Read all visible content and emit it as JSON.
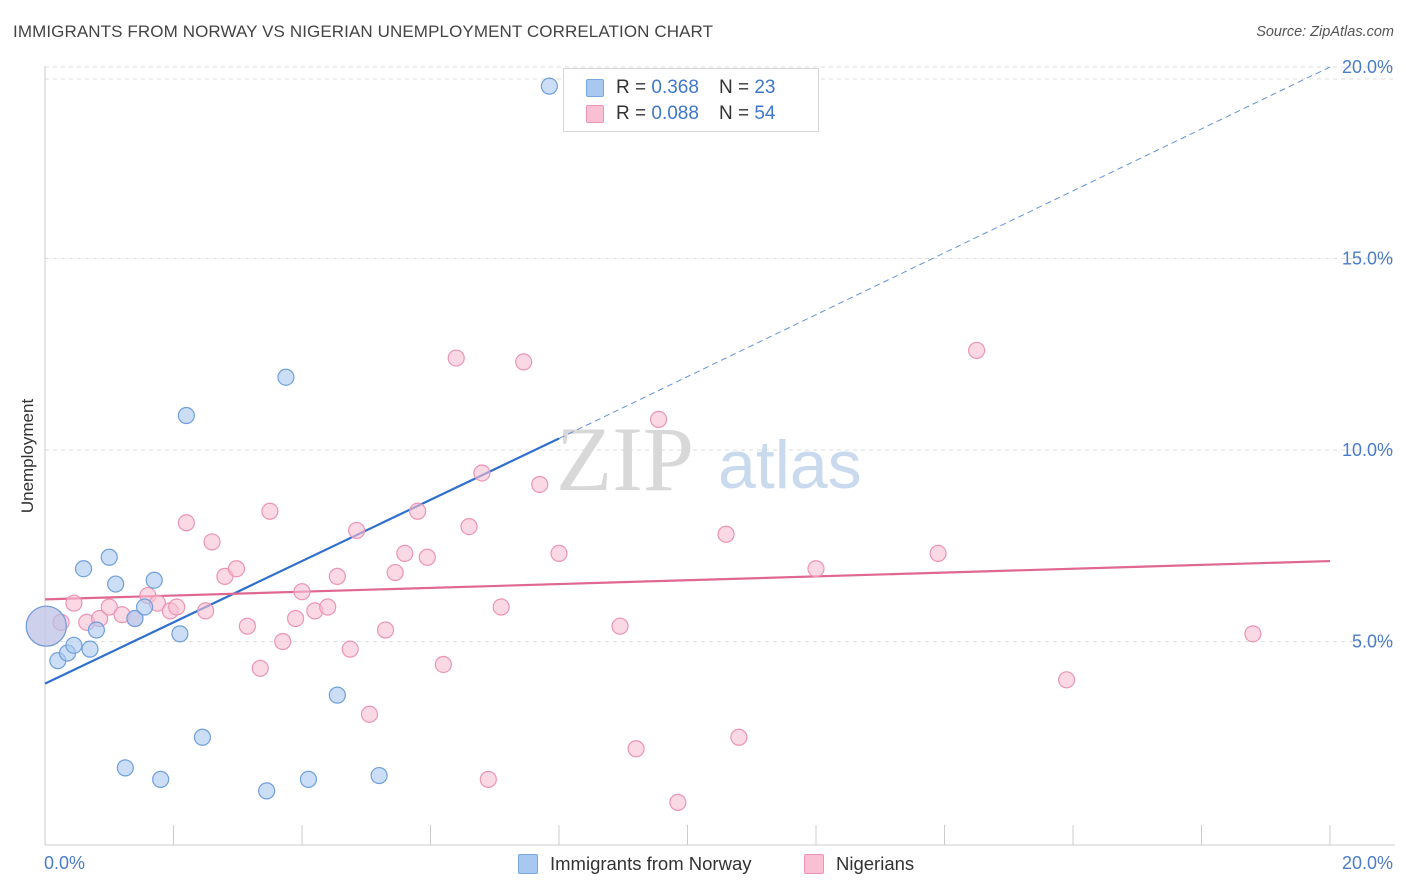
{
  "header": {
    "title": "IMMIGRANTS FROM NORWAY VS NIGERIAN UNEMPLOYMENT CORRELATION CHART",
    "source": "Source: ZipAtlas.com"
  },
  "watermark": {
    "zip": "ZIP",
    "atlas": "atlas"
  },
  "legend": {
    "rows": [
      {
        "r_label": "R =",
        "r_value": "0.368",
        "n_label": "N =",
        "n_value": "23",
        "color": "#a8c8f0",
        "border": "#7aa6e0"
      },
      {
        "r_label": "R =",
        "r_value": "0.088",
        "n_label": "N =",
        "n_value": "54",
        "color": "#f8c0d2",
        "border": "#ee93b2"
      }
    ]
  },
  "bottom_legend": [
    {
      "label": "Immigrants from Norway",
      "color": "#a8c8f0",
      "border": "#7aa6e0"
    },
    {
      "label": "Nigerians",
      "color": "#f8c0d2",
      "border": "#ee93b2"
    }
  ],
  "colors": {
    "blue_fill": "#a8c8f0",
    "blue_stroke": "#6f9fdc",
    "blue_line": "#2f6fce",
    "pink_fill": "#f8c0d2",
    "pink_stroke": "#ec94b3",
    "pink_line": "#e0678f",
    "grid": "#dddddd",
    "axis_text": "#4a7cc9"
  },
  "chart_data": {
    "type": "scatter",
    "title": "IMMIGRANTS FROM NORWAY VS NIGERIAN UNEMPLOYMENT CORRELATION CHART",
    "xlabel": "",
    "ylabel": "Unemployment",
    "xlim": [
      0,
      20
    ],
    "ylim": [
      0,
      20
    ],
    "x_tick_labels": [
      "0.0%",
      "20.0%"
    ],
    "y_ticks": [
      5,
      10,
      15,
      20
    ],
    "y_tick_labels": [
      "5.0%",
      "10.0%",
      "15.0%",
      "20.0%"
    ],
    "grid": true,
    "legend_position": "top-center",
    "series": [
      {
        "name": "Immigrants from Norway",
        "stats": {
          "R": 0.368,
          "N": 23
        },
        "trendline": {
          "x": [
            0,
            8.0
          ],
          "y": [
            3.9,
            10.3
          ],
          "extended_dashed_to": [
            20,
            20.0
          ]
        },
        "points": [
          {
            "x": 0.02,
            "y": 5.4,
            "big": true
          },
          {
            "x": 0.2,
            "y": 4.5
          },
          {
            "x": 0.35,
            "y": 4.7
          },
          {
            "x": 0.45,
            "y": 4.9
          },
          {
            "x": 0.6,
            "y": 6.9
          },
          {
            "x": 0.7,
            "y": 4.8
          },
          {
            "x": 0.8,
            "y": 5.3
          },
          {
            "x": 1.0,
            "y": 7.2
          },
          {
            "x": 1.1,
            "y": 6.5
          },
          {
            "x": 1.25,
            "y": 1.7
          },
          {
            "x": 1.4,
            "y": 5.6
          },
          {
            "x": 1.55,
            "y": 5.9
          },
          {
            "x": 1.7,
            "y": 6.6
          },
          {
            "x": 1.8,
            "y": 1.4
          },
          {
            "x": 2.1,
            "y": 5.2
          },
          {
            "x": 2.2,
            "y": 10.9
          },
          {
            "x": 2.45,
            "y": 2.5
          },
          {
            "x": 3.45,
            "y": 1.1
          },
          {
            "x": 3.75,
            "y": 11.9
          },
          {
            "x": 4.1,
            "y": 1.4
          },
          {
            "x": 4.55,
            "y": 3.6
          },
          {
            "x": 5.2,
            "y": 1.5
          },
          {
            "x": 7.85,
            "y": 19.5
          }
        ]
      },
      {
        "name": "Nigerians",
        "stats": {
          "R": 0.088,
          "N": 54
        },
        "trendline": {
          "x": [
            0,
            20
          ],
          "y": [
            6.1,
            7.1
          ]
        },
        "points": [
          {
            "x": 0.02,
            "y": 5.4,
            "big": true
          },
          {
            "x": 0.25,
            "y": 5.5
          },
          {
            "x": 0.45,
            "y": 6.0
          },
          {
            "x": 0.65,
            "y": 5.5
          },
          {
            "x": 0.85,
            "y": 5.6
          },
          {
            "x": 1.0,
            "y": 5.9
          },
          {
            "x": 1.2,
            "y": 5.7
          },
          {
            "x": 1.4,
            "y": 5.6
          },
          {
            "x": 1.6,
            "y": 6.2
          },
          {
            "x": 1.75,
            "y": 6.0
          },
          {
            "x": 1.95,
            "y": 5.8
          },
          {
            "x": 2.05,
            "y": 5.9
          },
          {
            "x": 2.2,
            "y": 8.1
          },
          {
            "x": 2.5,
            "y": 5.8
          },
          {
            "x": 2.6,
            "y": 7.6
          },
          {
            "x": 2.8,
            "y": 6.7
          },
          {
            "x": 2.98,
            "y": 6.9
          },
          {
            "x": 3.15,
            "y": 5.4
          },
          {
            "x": 3.35,
            "y": 4.3
          },
          {
            "x": 3.5,
            "y": 8.4
          },
          {
            "x": 3.7,
            "y": 5.0
          },
          {
            "x": 3.9,
            "y": 5.6
          },
          {
            "x": 4.0,
            "y": 6.3
          },
          {
            "x": 4.2,
            "y": 5.8
          },
          {
            "x": 4.4,
            "y": 5.9
          },
          {
            "x": 4.55,
            "y": 6.7
          },
          {
            "x": 4.75,
            "y": 4.8
          },
          {
            "x": 4.85,
            "y": 7.9
          },
          {
            "x": 5.05,
            "y": 3.1
          },
          {
            "x": 5.3,
            "y": 5.3
          },
          {
            "x": 5.45,
            "y": 6.8
          },
          {
            "x": 5.6,
            "y": 7.3
          },
          {
            "x": 5.8,
            "y": 8.4
          },
          {
            "x": 5.95,
            "y": 7.2
          },
          {
            "x": 6.2,
            "y": 4.4
          },
          {
            "x": 6.4,
            "y": 12.4
          },
          {
            "x": 6.6,
            "y": 8.0
          },
          {
            "x": 6.8,
            "y": 9.4
          },
          {
            "x": 6.9,
            "y": 1.4
          },
          {
            "x": 7.1,
            "y": 5.9
          },
          {
            "x": 7.45,
            "y": 12.3
          },
          {
            "x": 7.7,
            "y": 9.1
          },
          {
            "x": 8.0,
            "y": 7.3
          },
          {
            "x": 8.95,
            "y": 5.4
          },
          {
            "x": 9.2,
            "y": 2.2
          },
          {
            "x": 9.55,
            "y": 10.8
          },
          {
            "x": 9.85,
            "y": 0.8
          },
          {
            "x": 10.6,
            "y": 7.8
          },
          {
            "x": 10.8,
            "y": 2.5
          },
          {
            "x": 12.0,
            "y": 6.9
          },
          {
            "x": 13.9,
            "y": 7.3
          },
          {
            "x": 14.5,
            "y": 12.6
          },
          {
            "x": 15.9,
            "y": 4.0
          },
          {
            "x": 18.8,
            "y": 5.2
          }
        ]
      }
    ]
  }
}
